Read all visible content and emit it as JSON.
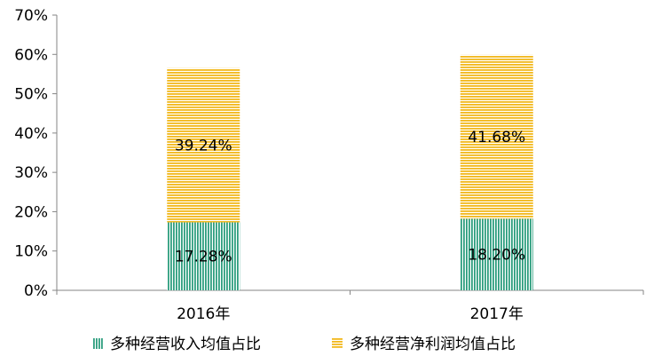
{
  "chart_data": {
    "type": "bar",
    "stacked": true,
    "categories": [
      "2016年",
      "2017年"
    ],
    "series": [
      {
        "name": "多种经营收入均值占比",
        "values": [
          17.28,
          18.2
        ],
        "labels": [
          "17.28%",
          "18.20%"
        ],
        "color": "#2e9e7f",
        "pattern": "vertical-stripes"
      },
      {
        "name": "多种经营净利润均值占比",
        "values": [
          39.24,
          41.68
        ],
        "labels": [
          "39.24%",
          "41.68%"
        ],
        "color": "#f2b81c",
        "pattern": "horizontal-stripes"
      }
    ],
    "ylim": [
      0,
      70
    ],
    "yticks": [
      "0%",
      "10%",
      "20%",
      "30%",
      "40%",
      "50%",
      "60%",
      "70%"
    ],
    "grid": false,
    "legend": "bottom",
    "title": "",
    "xlabel": "",
    "ylabel": ""
  }
}
